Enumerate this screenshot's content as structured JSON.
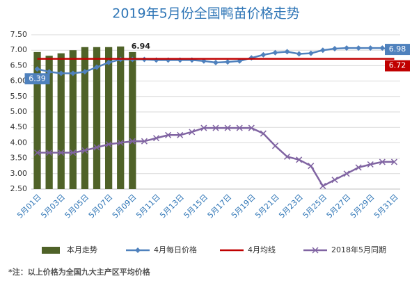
{
  "chart_data": {
    "type": "bar_line",
    "title": "2019年5月份全国鸭苗价格走势",
    "categories": [
      "5月01日",
      null,
      "5月03日",
      null,
      "5月05日",
      null,
      "5月07日",
      null,
      "5月09日",
      null,
      "5月11日",
      null,
      "5月13日",
      null,
      "5月15日",
      null,
      "5月17日",
      null,
      "5月19日",
      null,
      "5月21日",
      null,
      "5月23日",
      null,
      "5月25日",
      null,
      "5月27日",
      null,
      "5月29日",
      null,
      "5月31日"
    ],
    "series": [
      {
        "name": "本月走势",
        "kind": "bar",
        "color": "#4f6228",
        "values": [
          6.94,
          6.82,
          6.9,
          7.0,
          7.1,
          7.1,
          7.1,
          7.12,
          6.94,
          null,
          null,
          null,
          null,
          null,
          null,
          null,
          null,
          null,
          null,
          null,
          null,
          null,
          null,
          null,
          null,
          null,
          null,
          null,
          null,
          null,
          null
        ],
        "value_labels": [
          null,
          null,
          null,
          null,
          null,
          null,
          null,
          null,
          "6.94",
          null,
          null,
          null,
          null,
          null,
          null,
          null,
          null,
          null,
          null,
          null,
          null,
          null,
          null,
          null,
          null,
          null,
          null,
          null,
          null,
          null,
          null
        ]
      },
      {
        "name": "4月每日价格",
        "kind": "line",
        "marker": "diamond",
        "color": "#4f81bd",
        "values": [
          6.39,
          6.3,
          6.25,
          6.25,
          6.3,
          6.45,
          6.6,
          6.7,
          6.7,
          6.7,
          6.68,
          6.68,
          6.68,
          6.68,
          6.65,
          6.6,
          6.62,
          6.65,
          6.75,
          6.85,
          6.92,
          6.95,
          6.88,
          6.9,
          7.0,
          7.05,
          7.07,
          7.07,
          7.07,
          7.07,
          6.98
        ],
        "value_labels": [
          "6.39",
          null,
          null,
          null,
          null,
          null,
          null,
          null,
          null,
          null,
          null,
          null,
          null,
          null,
          null,
          null,
          null,
          null,
          null,
          null,
          null,
          null,
          null,
          null,
          null,
          null,
          null,
          null,
          null,
          null,
          "6.98"
        ]
      },
      {
        "name": "4月均线",
        "kind": "line",
        "marker": "none",
        "color": "#c00000",
        "values": [
          6.72,
          6.72,
          6.72,
          6.72,
          6.72,
          6.72,
          6.72,
          6.72,
          6.72,
          6.72,
          6.72,
          6.72,
          6.72,
          6.72,
          6.72,
          6.72,
          6.72,
          6.72,
          6.72,
          6.72,
          6.72,
          6.72,
          6.72,
          6.72,
          6.72,
          6.72,
          6.72,
          6.72,
          6.72,
          6.72,
          6.72
        ],
        "value_labels": [
          null,
          null,
          null,
          null,
          null,
          null,
          null,
          null,
          null,
          null,
          null,
          null,
          null,
          null,
          null,
          null,
          null,
          null,
          null,
          null,
          null,
          null,
          null,
          null,
          null,
          null,
          null,
          null,
          null,
          null,
          "6.72"
        ]
      },
      {
        "name": "2018年5月同期",
        "kind": "line",
        "marker": "x",
        "color": "#8064a2",
        "values": [
          3.68,
          3.68,
          3.68,
          3.68,
          3.75,
          3.85,
          3.95,
          4.0,
          4.05,
          4.05,
          4.15,
          4.25,
          4.25,
          4.35,
          4.48,
          4.48,
          4.48,
          4.48,
          4.48,
          4.3,
          3.9,
          3.55,
          3.45,
          3.25,
          2.6,
          2.8,
          3.0,
          3.2,
          3.3,
          3.38,
          3.38
        ]
      }
    ],
    "ylim": [
      2.5,
      7.5
    ],
    "yticks": [
      {
        "value": 2.5,
        "label": "2.50"
      },
      {
        "value": 3,
        "label": "3.00"
      },
      {
        "value": 3.5,
        "label": "3.50"
      },
      {
        "value": 4,
        "label": "4.00"
      },
      {
        "value": 4.5,
        "label": "4.50"
      },
      {
        "value": 5,
        "label": "5.00"
      },
      {
        "value": 5.5,
        "label": "5.50"
      },
      {
        "value": 6,
        "label": "6.00"
      },
      {
        "value": 6.5,
        "label": "6.50"
      },
      {
        "value": 7,
        "label": "7.00"
      },
      {
        "value": 7.5,
        "label": "7.50"
      }
    ],
    "grid": true,
    "legend": "bottom",
    "footnote": "*注：以上价格为全国九大主产区平均价格"
  }
}
